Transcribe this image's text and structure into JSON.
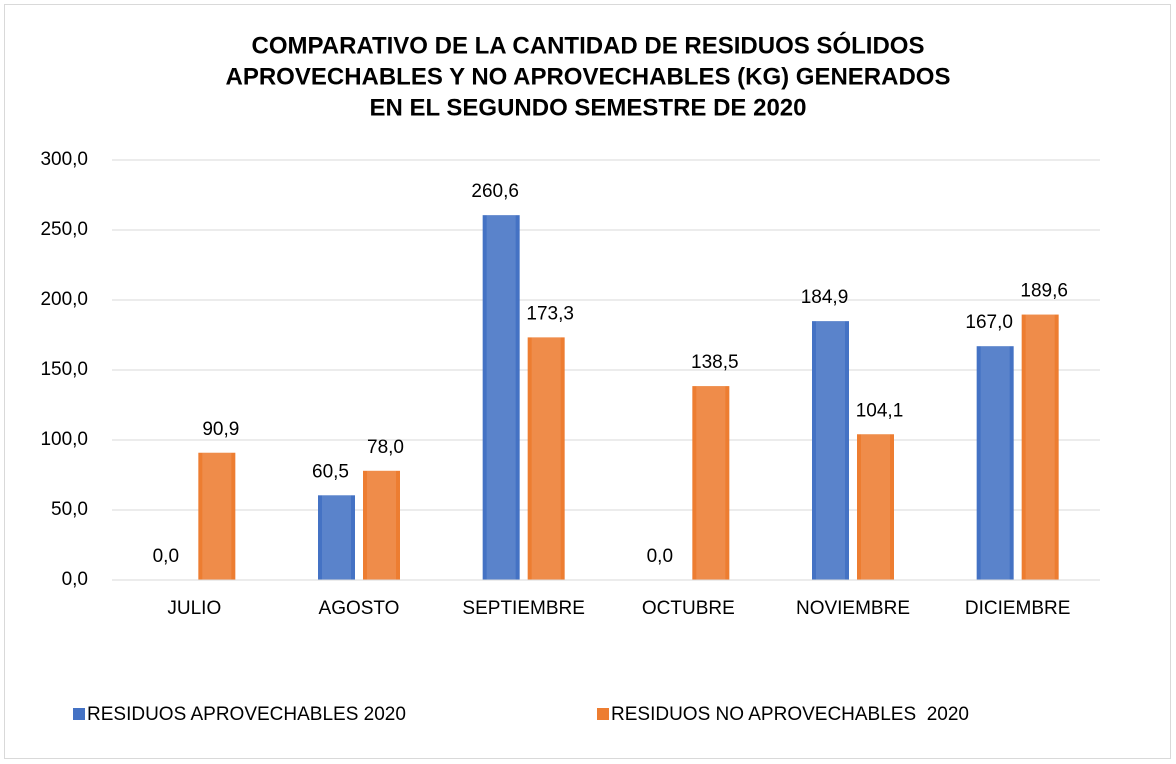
{
  "chart_data": {
    "type": "bar",
    "title": [
      "COMPARATIVO DE LA CANTIDAD DE RESIDUOS SÓLIDOS",
      "APROVECHABLES Y NO APROVECHABLES (KG) GENERADOS",
      "EN EL SEGUNDO SEMESTRE DE 2020"
    ],
    "categories": [
      "JULIO",
      "AGOSTO",
      "SEPTIEMBRE",
      "OCTUBRE",
      "NOVIEMBRE",
      "DICIEMBRE"
    ],
    "series": [
      {
        "name": "RESIDUOS APROVECHABLES 2020",
        "color": "#4472c4",
        "values": [
          0,
          60.5,
          260.6,
          0,
          184.9,
          167.0
        ],
        "value_labels": [
          "0,0",
          "60,5",
          "260,6",
          "0,0",
          "184,9",
          "167,0"
        ]
      },
      {
        "name": "RESIDUOS NO APROVECHABLES  2020",
        "color": "#ed7d31",
        "values": [
          90.9,
          78.0,
          173.3,
          138.5,
          104.1,
          189.6
        ],
        "value_labels": [
          "90,9",
          "78,0",
          "173,3",
          "138,5",
          "104,1",
          "189,6"
        ]
      }
    ],
    "ylim": [
      0,
      300
    ],
    "yticks": [
      {
        "value": 0,
        "label": "0,0"
      },
      {
        "value": 50,
        "label": "50,0"
      },
      {
        "value": 100,
        "label": "100,0"
      },
      {
        "value": 150,
        "label": "150,0"
      },
      {
        "value": 200,
        "label": "200,0"
      },
      {
        "value": 250,
        "label": "250,0"
      },
      {
        "value": 300,
        "label": "300,0"
      }
    ],
    "grid": true,
    "legend": "bottom"
  }
}
